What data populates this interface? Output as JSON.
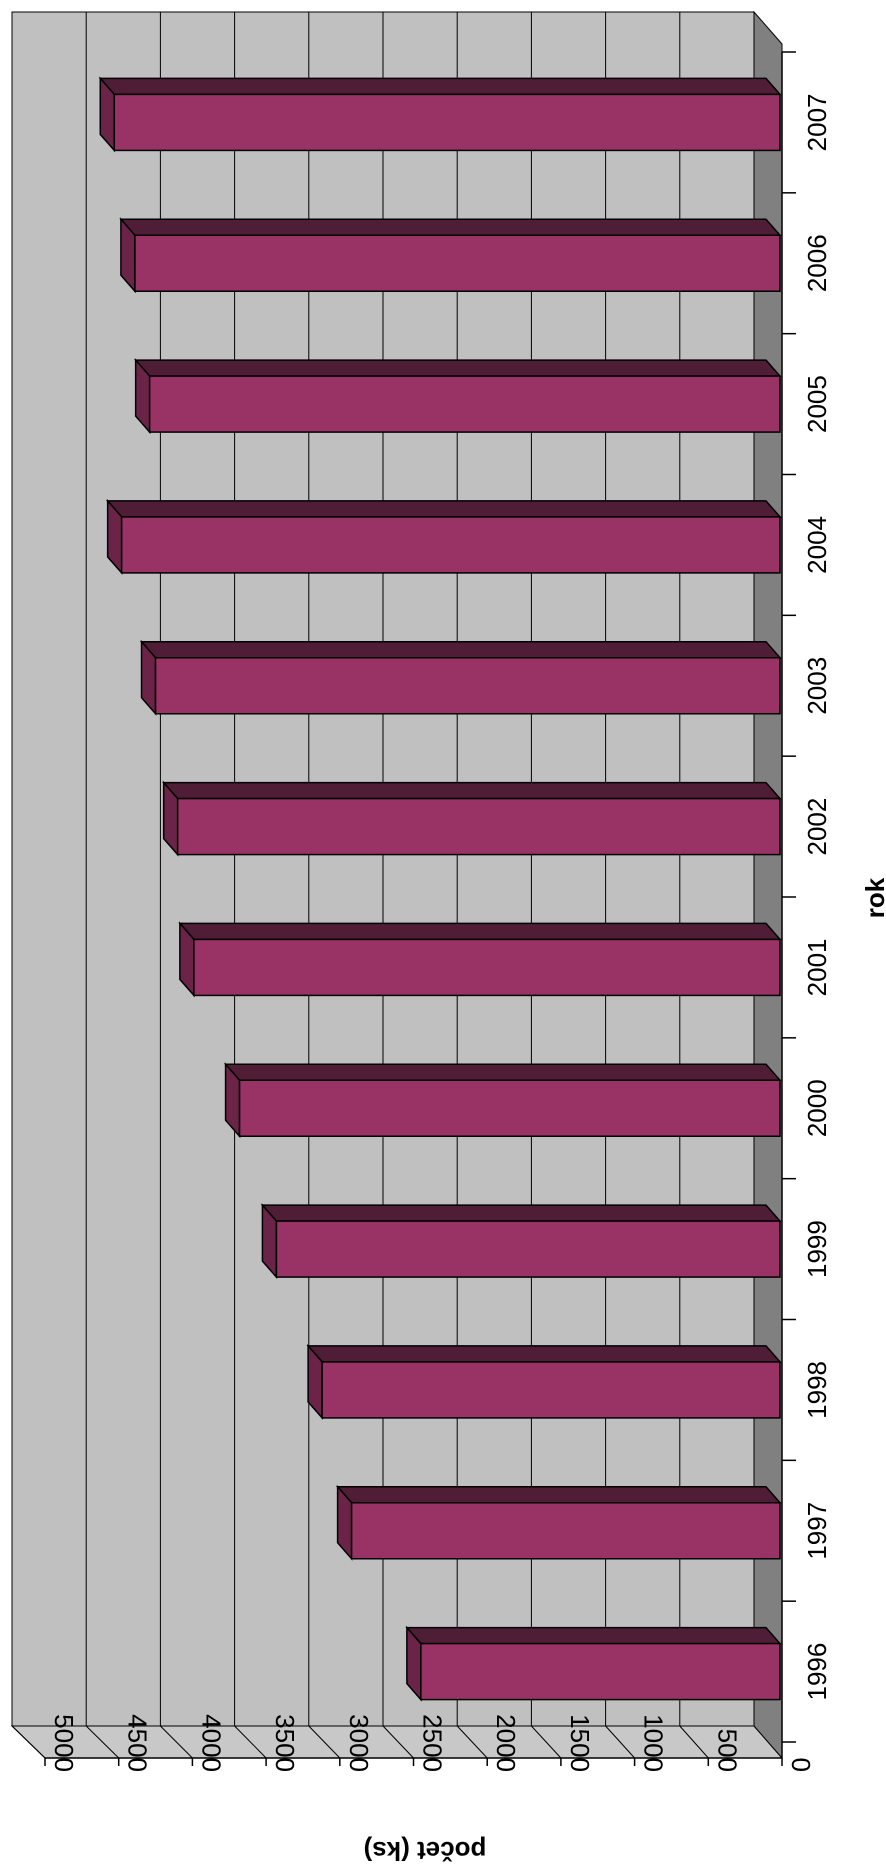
{
  "chart_data": {
    "type": "bar",
    "orientation": "3d-rotated",
    "categories": [
      "1996",
      "1997",
      "1998",
      "1999",
      "2000",
      "2001",
      "2002",
      "2003",
      "2004",
      "2005",
      "2006",
      "2007"
    ],
    "series": [
      {
        "values": [
          2450,
          2920,
          3120,
          3430,
          3680,
          3990,
          4100,
          4250,
          4480,
          4290,
          4390,
          4530
        ]
      }
    ],
    "xlabel": "rok",
    "ylabel": "počet (ks)",
    "yticks": [
      "0",
      "500",
      "1000",
      "1500",
      "2000",
      "2500",
      "3000",
      "3500",
      "4000",
      "4500",
      "5000"
    ],
    "ylim": [
      0,
      5000
    ],
    "grid": true,
    "legend": "none",
    "colors": {
      "bar_front": "#993366",
      "bar_top": "#4f1d36",
      "bar_side": "#6b2447",
      "back_wall": "#c0c0c0",
      "side_wall": "#c8c8c8",
      "floor": "#808080",
      "gridline": "#000000"
    }
  }
}
